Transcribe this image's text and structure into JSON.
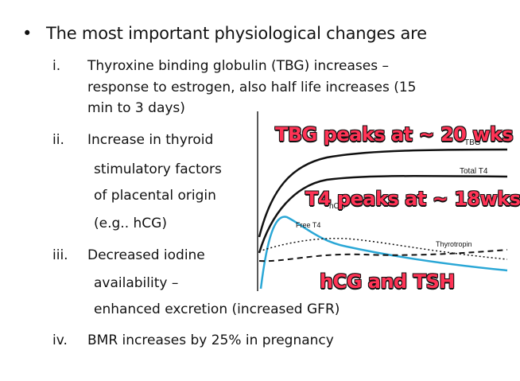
{
  "slide": {
    "bullet_text": "The most important physiological changes are",
    "items": [
      {
        "numeral": "i.",
        "lines": [
          "Thyroxine binding globulin (TBG) increases –",
          "response to estrogen,  also half life increases (15",
          "min to 3 days)"
        ]
      },
      {
        "numeral": "ii.",
        "lines": [
          "Increase in thyroid",
          "stimulatory factors",
          "of placental origin",
          "(e.g.. hCG)"
        ]
      },
      {
        "numeral": "iii.",
        "lines": [
          "Decreased iodine",
          "availability –",
          "enhanced excretion (increased GFR)"
        ]
      },
      {
        "numeral": "iv.",
        "lines": [
          "BMR increases by 25% in pregnancy"
        ]
      }
    ]
  },
  "graph": {
    "labels": {
      "tbg": "TBG",
      "total_t4": "Total T4",
      "hcg": "hCG",
      "free_t4": "Free T4",
      "thyrotropin": "Thyrotropin"
    },
    "colors": {
      "free_t4": "#2aa7d6",
      "lines": "#111111"
    }
  },
  "overlays": {
    "tbg_peak": "TBG peaks at ~ 20 wks",
    "t4_peak": "T4 peaks at ~ 18wks",
    "hcg_tsh": "hCG and TSH",
    "color": "#ff3355"
  }
}
